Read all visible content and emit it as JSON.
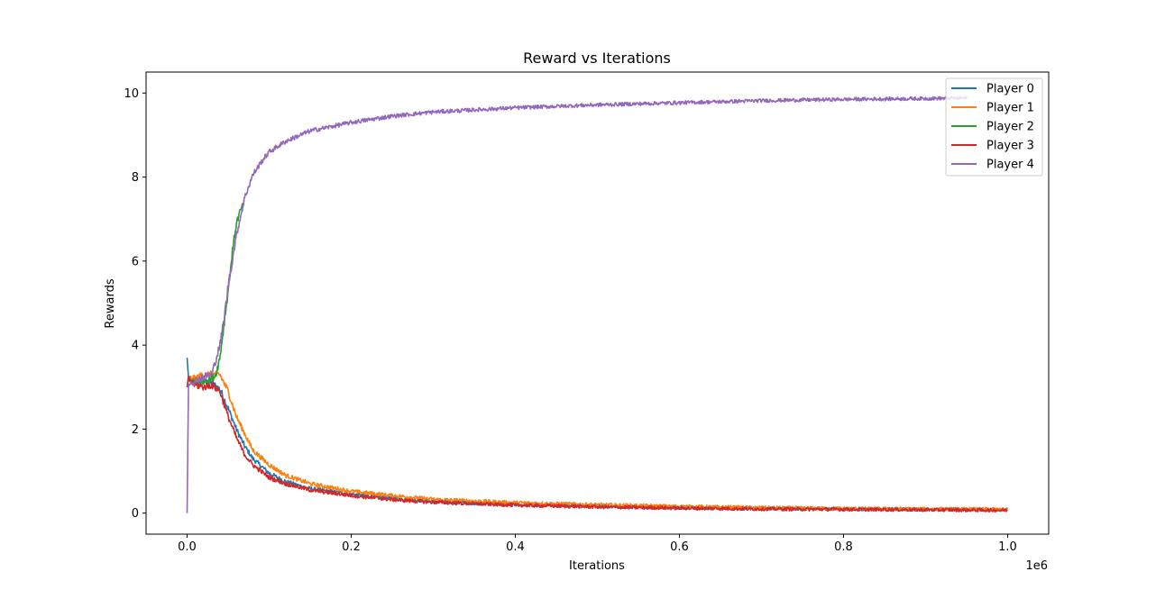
{
  "chart_data": {
    "type": "line",
    "title": "Reward vs Iterations",
    "xlabel": "Iterations",
    "ylabel": "Rewards",
    "x_offset_label": "1e6",
    "xlim": [
      -0.05,
      1.05
    ],
    "ylim": [
      -0.5,
      10.5
    ],
    "x_ticks": [
      0.0,
      0.2,
      0.4,
      0.6,
      0.8,
      1.0
    ],
    "x_tick_labels": [
      "0.0",
      "0.2",
      "0.4",
      "0.6",
      "0.8",
      "1.0"
    ],
    "y_ticks": [
      0,
      2,
      4,
      6,
      8,
      10
    ],
    "y_tick_labels": [
      "0",
      "2",
      "4",
      "6",
      "8",
      "10"
    ],
    "x_unit_scale": 1000000,
    "legend_position": "top-right",
    "series": [
      {
        "name": "Player 0",
        "color": "#1f77b4",
        "x": [
          0,
          0.001,
          0.01,
          0.02,
          0.03,
          0.04,
          0.05,
          0.06,
          0.07,
          0.08,
          0.1,
          0.12,
          0.15,
          0.2,
          0.25,
          0.3,
          0.4,
          0.5,
          0.6,
          0.7,
          0.8,
          0.9,
          1.0
        ],
        "values": [
          3.7,
          3.2,
          3.1,
          3.15,
          3.1,
          2.95,
          2.5,
          2.0,
          1.6,
          1.3,
          0.95,
          0.75,
          0.58,
          0.45,
          0.35,
          0.28,
          0.2,
          0.16,
          0.13,
          0.11,
          0.1,
          0.09,
          0.08
        ]
      },
      {
        "name": "Player 1",
        "color": "#ff7f0e",
        "x": [
          0,
          0.001,
          0.01,
          0.02,
          0.03,
          0.04,
          0.05,
          0.06,
          0.07,
          0.08,
          0.1,
          0.12,
          0.15,
          0.2,
          0.25,
          0.3,
          0.4,
          0.5,
          0.6,
          0.7,
          0.8,
          0.9,
          1.0
        ],
        "values": [
          3.0,
          3.2,
          3.2,
          3.3,
          3.3,
          3.3,
          2.9,
          2.3,
          1.9,
          1.5,
          1.15,
          0.9,
          0.7,
          0.52,
          0.42,
          0.33,
          0.25,
          0.2,
          0.16,
          0.13,
          0.11,
          0.1,
          0.09
        ]
      },
      {
        "name": "Player 2",
        "color": "#2ca02c",
        "x": [
          0,
          0.001,
          0.01,
          0.02,
          0.03,
          0.035,
          0.04,
          0.045,
          0.05,
          0.055,
          0.06,
          0.065,
          0.07
        ],
        "values": [
          3.0,
          3.2,
          3.1,
          3.15,
          3.2,
          3.3,
          3.7,
          4.5,
          5.3,
          6.2,
          6.9,
          7.2,
          7.4
        ]
      },
      {
        "name": "Player 3",
        "color": "#d62728",
        "x": [
          0,
          0.001,
          0.01,
          0.02,
          0.03,
          0.04,
          0.05,
          0.06,
          0.07,
          0.08,
          0.1,
          0.12,
          0.15,
          0.2,
          0.25,
          0.3,
          0.4,
          0.5,
          0.6,
          0.7,
          0.8,
          0.9,
          1.0
        ],
        "values": [
          3.0,
          3.2,
          3.05,
          3.0,
          3.05,
          2.9,
          2.3,
          1.8,
          1.4,
          1.15,
          0.85,
          0.7,
          0.55,
          0.42,
          0.32,
          0.26,
          0.19,
          0.15,
          0.12,
          0.1,
          0.09,
          0.08,
          0.07
        ]
      },
      {
        "name": "Player 4",
        "color": "#9467bd",
        "x": [
          0,
          0.001,
          0.01,
          0.02,
          0.03,
          0.04,
          0.045,
          0.05,
          0.06,
          0.07,
          0.08,
          0.09,
          0.1,
          0.12,
          0.15,
          0.2,
          0.25,
          0.3,
          0.4,
          0.5,
          0.6,
          0.7,
          0.8,
          0.9,
          0.95
        ],
        "values": [
          0.0,
          3.1,
          3.15,
          3.25,
          3.3,
          4.0,
          4.6,
          5.4,
          6.6,
          7.5,
          8.05,
          8.35,
          8.6,
          8.85,
          9.1,
          9.3,
          9.45,
          9.55,
          9.65,
          9.72,
          9.77,
          9.82,
          9.85,
          9.87,
          9.88
        ]
      }
    ]
  }
}
